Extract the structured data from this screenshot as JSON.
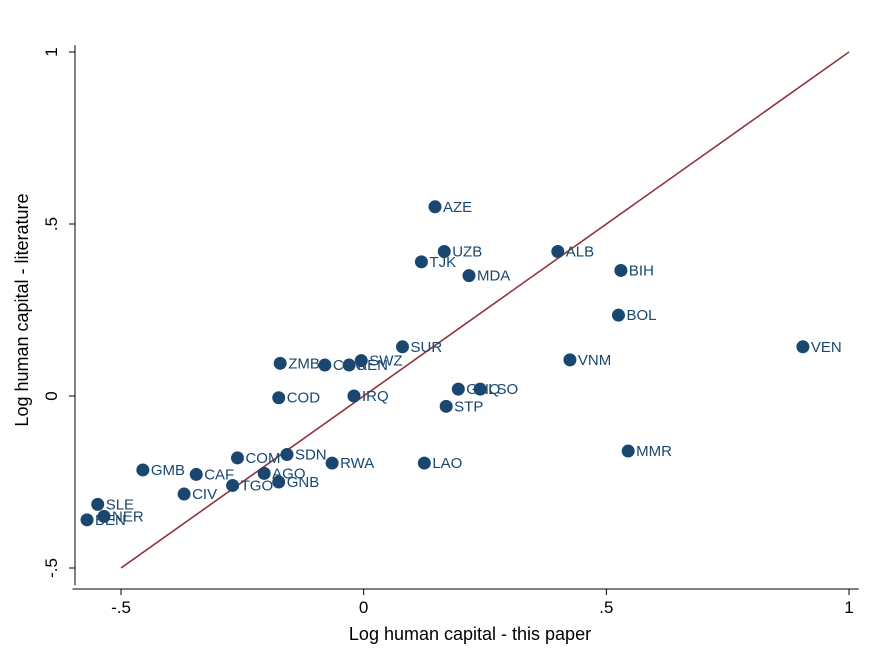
{
  "chart_data": {
    "type": "scatter",
    "xlabel": "Log human capital - this paper",
    "ylabel": "Log human capital - literature",
    "xlim": [
      -0.6,
      1.02
    ],
    "ylim": [
      -0.55,
      1.02
    ],
    "xticks": [
      {
        "value": -0.5,
        "label": "-.5"
      },
      {
        "value": 0,
        "label": "0"
      },
      {
        "value": 0.5,
        "label": ".5"
      },
      {
        "value": 1,
        "label": "1"
      }
    ],
    "yticks": [
      {
        "value": -0.5,
        "label": "-.5"
      },
      {
        "value": 0,
        "label": "0"
      },
      {
        "value": 0.5,
        "label": ".5"
      },
      {
        "value": 1,
        "label": "1"
      }
    ],
    "grid": false,
    "reference_line": {
      "from": [
        -0.5,
        -0.5
      ],
      "to": [
        1,
        1
      ],
      "color": "#90353b"
    },
    "marker_color": "#1a476f",
    "points": [
      {
        "label": "AZE",
        "x": 0.147,
        "y": 0.55
      },
      {
        "label": "UZB",
        "x": 0.166,
        "y": 0.42
      },
      {
        "label": "TJK",
        "x": 0.119,
        "y": 0.39
      },
      {
        "label": "MDA",
        "x": 0.217,
        "y": 0.35
      },
      {
        "label": "ALB",
        "x": 0.4,
        "y": 0.42
      },
      {
        "label": "BIH",
        "x": 0.53,
        "y": 0.365
      },
      {
        "label": "BOL",
        "x": 0.525,
        "y": 0.235
      },
      {
        "label": "VEN",
        "x": 0.905,
        "y": 0.143
      },
      {
        "label": "SUR",
        "x": 0.08,
        "y": 0.143
      },
      {
        "label": "VNM",
        "x": 0.425,
        "y": 0.105
      },
      {
        "label": "SWZ",
        "x": -0.005,
        "y": 0.103
      },
      {
        "label": "ZMB",
        "x": -0.172,
        "y": 0.095
      },
      {
        "label": "COG",
        "x": -0.08,
        "y": 0.09
      },
      {
        "label": "KEN",
        "x": -0.03,
        "y": 0.09
      },
      {
        "label": "GNQ",
        "x": 0.195,
        "y": 0.02
      },
      {
        "label": "LSO",
        "x": 0.24,
        "y": 0.02
      },
      {
        "label": "COD",
        "x": -0.175,
        "y": -0.005
      },
      {
        "label": "IRQ",
        "x": -0.02,
        "y": 0.0
      },
      {
        "label": "STP",
        "x": 0.17,
        "y": -0.03
      },
      {
        "label": "COM",
        "x": -0.26,
        "y": -0.18
      },
      {
        "label": "SDN",
        "x": -0.158,
        "y": -0.17
      },
      {
        "label": "RWA",
        "x": -0.065,
        "y": -0.195
      },
      {
        "label": "LAO",
        "x": 0.125,
        "y": -0.195
      },
      {
        "label": "MMR",
        "x": 0.545,
        "y": -0.16
      },
      {
        "label": "GMB",
        "x": -0.455,
        "y": -0.215
      },
      {
        "label": "CAF",
        "x": -0.345,
        "y": -0.228
      },
      {
        "label": "AGO",
        "x": -0.205,
        "y": -0.225
      },
      {
        "label": "GNB",
        "x": -0.175,
        "y": -0.25
      },
      {
        "label": "TGO",
        "x": -0.27,
        "y": -0.26
      },
      {
        "label": "CIV",
        "x": -0.37,
        "y": -0.285
      },
      {
        "label": "SLE",
        "x": -0.548,
        "y": -0.315
      },
      {
        "label": "NER",
        "x": -0.535,
        "y": -0.35
      },
      {
        "label": "BEN",
        "x": -0.57,
        "y": -0.36
      }
    ]
  }
}
